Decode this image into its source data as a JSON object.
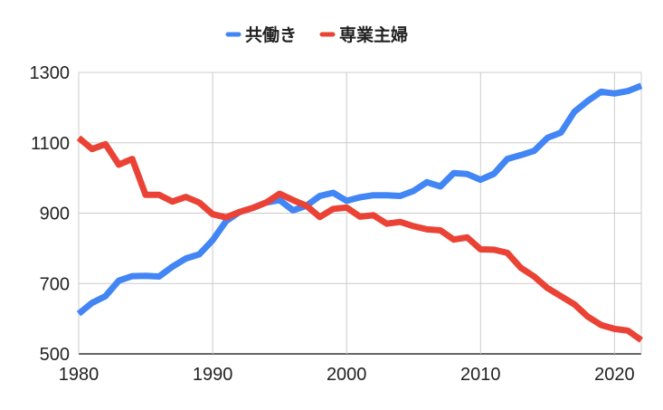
{
  "chart_data": {
    "type": "line",
    "title": "",
    "xlabel": "",
    "ylabel": "",
    "xlim": [
      1980,
      2022
    ],
    "ylim": [
      500,
      1300
    ],
    "x_ticks": [
      "1980",
      "1990",
      "2000",
      "2010",
      "2020"
    ],
    "y_ticks": [
      "1300",
      "1100",
      "900",
      "700",
      "500"
    ],
    "grid": true,
    "legend_position": "top-center",
    "x": [
      1980,
      1981,
      1982,
      1983,
      1984,
      1985,
      1986,
      1987,
      1988,
      1989,
      1990,
      1991,
      1992,
      1993,
      1994,
      1995,
      1996,
      1997,
      1998,
      1999,
      2000,
      2001,
      2002,
      2003,
      2004,
      2005,
      2006,
      2007,
      2008,
      2009,
      2010,
      2011,
      2012,
      2013,
      2014,
      2015,
      2016,
      2017,
      2018,
      2019,
      2020,
      2021,
      2022
    ],
    "series": [
      {
        "name": "共働き",
        "color": "#4285f4",
        "values": [
          614,
          645,
          664,
          708,
          721,
          722,
          720,
          748,
          771,
          783,
          823,
          877,
          903,
          915,
          930,
          937,
          908,
          921,
          949,
          958,
          935,
          945,
          951,
          951,
          949,
          963,
          988,
          976,
          1014,
          1011,
          995,
          1012,
          1054,
          1065,
          1077,
          1114,
          1129,
          1188,
          1219,
          1245,
          1240,
          1247,
          1262
        ]
      },
      {
        "name": "専業主婦",
        "color": "#ea4335",
        "values": [
          1114,
          1082,
          1096,
          1038,
          1054,
          952,
          952,
          933,
          946,
          930,
          897,
          888,
          903,
          915,
          930,
          955,
          937,
          921,
          889,
          912,
          916,
          890,
          894,
          870,
          875,
          863,
          854,
          851,
          825,
          831,
          797,
          796,
          787,
          745,
          720,
          687,
          664,
          641,
          606,
          582,
          571,
          566,
          539
        ]
      }
    ]
  }
}
